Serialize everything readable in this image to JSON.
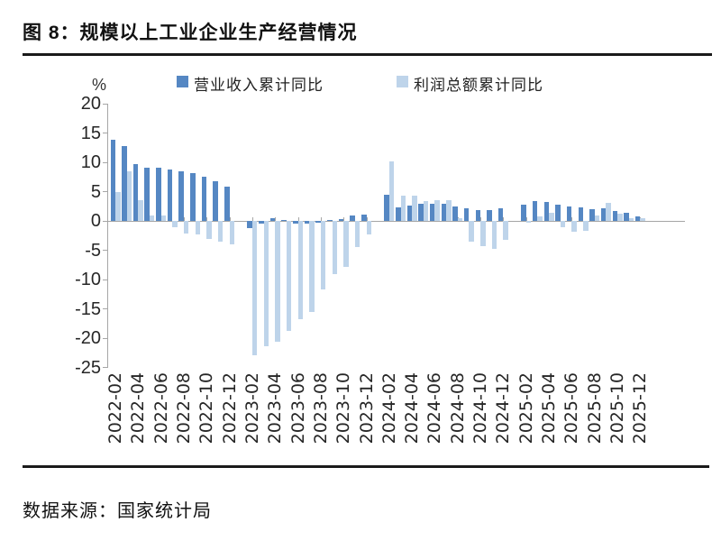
{
  "figure": {
    "title": "图 8：规模以上工业企业生产经营情况",
    "source": "数据来源：国家统计局"
  },
  "chart_data": {
    "type": "bar",
    "unit_label": "%",
    "legend_position": "top",
    "grid": false,
    "ylim": [
      -25,
      20
    ],
    "y_ticks": [
      20,
      15,
      10,
      5,
      0,
      -5,
      -10,
      -15,
      -20,
      -25
    ],
    "x_tick_labels": [
      "2022-02",
      "2022-04",
      "2022-06",
      "2022-08",
      "2022-10",
      "2022-12",
      "2023-02",
      "2023-04",
      "2023-06",
      "2023-08",
      "2023-10",
      "2023-12",
      "2024-02",
      "2024-04",
      "2024-06",
      "2024-08",
      "2024-10",
      "2024-12",
      "2025-02",
      "2025-04",
      "2025-06",
      "2025-08",
      "2025-10",
      "2025-12"
    ],
    "categories": [
      "2022-02",
      "2022-03",
      "2022-04",
      "2022-05",
      "2022-06",
      "2022-07",
      "2022-08",
      "2022-09",
      "2022-10",
      "2022-11",
      "2022-12",
      "2023-02",
      "2023-03",
      "2023-04",
      "2023-05",
      "2023-06",
      "2023-07",
      "2023-08",
      "2023-09",
      "2023-10",
      "2023-11",
      "2023-12",
      "2024-02",
      "2024-03",
      "2024-04",
      "2024-05",
      "2024-06",
      "2024-07",
      "2024-08",
      "2024-09",
      "2024-10",
      "2024-11",
      "2024-12",
      "2025-02",
      "2025-03",
      "2025-04",
      "2025-05",
      "2025-06",
      "2025-07",
      "2025-08",
      "2025-09",
      "2025-10",
      "2025-11",
      "2025-12"
    ],
    "legend": [
      {
        "name": "营业收入累计同比",
        "color": "#5587C3"
      },
      {
        "name": "利润总额累计同比",
        "color": "#BED4EA"
      }
    ],
    "series": [
      {
        "name": "营业收入累计同比",
        "color": "#5587C3",
        "values": [
          13.9,
          12.7,
          9.7,
          9.1,
          9.1,
          8.8,
          8.4,
          8.2,
          7.6,
          6.7,
          5.9,
          -1.3,
          -0.5,
          0.5,
          0.1,
          -0.4,
          -0.5,
          -0.3,
          0.0,
          0.3,
          1.0,
          1.1,
          4.5,
          2.3,
          2.6,
          2.9,
          2.9,
          2.9,
          2.4,
          2.1,
          1.9,
          1.8,
          2.1,
          2.8,
          3.4,
          3.2,
          2.7,
          2.5,
          2.3,
          2.0,
          2.2,
          1.7,
          1.4,
          0.8
        ]
      },
      {
        "name": "利润总额累计同比",
        "color": "#BED4EA",
        "values": [
          5.0,
          8.5,
          3.5,
          1.0,
          1.0,
          -1.1,
          -2.1,
          -2.3,
          -3.0,
          -3.6,
          -4.0,
          -22.9,
          -21.4,
          -20.6,
          -18.8,
          -16.8,
          -15.5,
          -11.7,
          -9.0,
          -7.8,
          -4.4,
          -2.3,
          10.2,
          4.3,
          4.3,
          3.4,
          3.5,
          3.6,
          0.5,
          -3.5,
          -4.3,
          -4.7,
          -3.3,
          -0.3,
          0.8,
          1.4,
          -1.1,
          -1.8,
          -1.7,
          0.9,
          3.1,
          1.3,
          0.5,
          0.4
        ]
      }
    ]
  }
}
